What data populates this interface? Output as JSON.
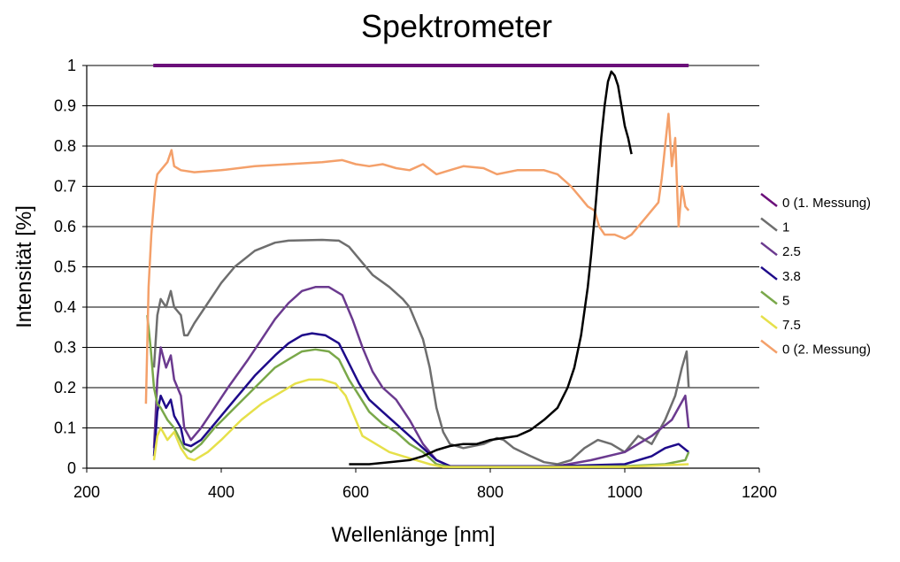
{
  "chart_data": {
    "type": "line",
    "title": "Spektrometer",
    "xlabel": "Wellenlänge [nm]",
    "ylabel": "Intensität [%]",
    "xlim": [
      200,
      1200
    ],
    "ylim": [
      0,
      1
    ],
    "x_ticks": [
      "200",
      "400",
      "600",
      "800",
      "1000",
      "1200"
    ],
    "y_ticks": [
      "0",
      "0.1",
      "0.2",
      "0.3",
      "0.4",
      "0.5",
      "0.6",
      "0.7",
      "0.8",
      "0.9",
      "1"
    ],
    "grid": "horizontal",
    "legend_position": "right",
    "series": [
      {
        "name": "0 (1. Messung)",
        "color": "#6b0f7a",
        "points": [
          [
            299,
            1
          ],
          [
            1095,
            1
          ]
        ]
      },
      {
        "name": "1",
        "color": "#6e6e6e",
        "points": [
          [
            300,
            0.25
          ],
          [
            305,
            0.38
          ],
          [
            310,
            0.42
          ],
          [
            318,
            0.4
          ],
          [
            325,
            0.44
          ],
          [
            330,
            0.4
          ],
          [
            340,
            0.38
          ],
          [
            345,
            0.33
          ],
          [
            350,
            0.33
          ],
          [
            360,
            0.36
          ],
          [
            380,
            0.41
          ],
          [
            400,
            0.46
          ],
          [
            420,
            0.5
          ],
          [
            450,
            0.54
          ],
          [
            480,
            0.56
          ],
          [
            500,
            0.565
          ],
          [
            550,
            0.567
          ],
          [
            575,
            0.565
          ],
          [
            590,
            0.55
          ],
          [
            600,
            0.53
          ],
          [
            625,
            0.48
          ],
          [
            650,
            0.45
          ],
          [
            670,
            0.42
          ],
          [
            680,
            0.4
          ],
          [
            690,
            0.36
          ],
          [
            700,
            0.32
          ],
          [
            710,
            0.25
          ],
          [
            720,
            0.15
          ],
          [
            730,
            0.09
          ],
          [
            740,
            0.06
          ],
          [
            760,
            0.05
          ],
          [
            790,
            0.06
          ],
          [
            810,
            0.075
          ],
          [
            820,
            0.07
          ],
          [
            835,
            0.05
          ],
          [
            860,
            0.03
          ],
          [
            880,
            0.015
          ],
          [
            900,
            0.01
          ],
          [
            920,
            0.02
          ],
          [
            940,
            0.05
          ],
          [
            960,
            0.07
          ],
          [
            980,
            0.06
          ],
          [
            1000,
            0.04
          ],
          [
            1020,
            0.08
          ],
          [
            1040,
            0.06
          ],
          [
            1060,
            0.12
          ],
          [
            1075,
            0.18
          ],
          [
            1085,
            0.25
          ],
          [
            1092,
            0.29
          ],
          [
            1095,
            0.2
          ]
        ]
      },
      {
        "name": "2.5",
        "color": "#6b3a8f",
        "points": [
          [
            300,
            0.05
          ],
          [
            305,
            0.22
          ],
          [
            310,
            0.3
          ],
          [
            318,
            0.25
          ],
          [
            325,
            0.28
          ],
          [
            330,
            0.22
          ],
          [
            340,
            0.18
          ],
          [
            345,
            0.1
          ],
          [
            355,
            0.07
          ],
          [
            370,
            0.1
          ],
          [
            390,
            0.15
          ],
          [
            410,
            0.2
          ],
          [
            440,
            0.27
          ],
          [
            460,
            0.32
          ],
          [
            480,
            0.37
          ],
          [
            500,
            0.41
          ],
          [
            520,
            0.44
          ],
          [
            540,
            0.45
          ],
          [
            560,
            0.45
          ],
          [
            580,
            0.43
          ],
          [
            595,
            0.37
          ],
          [
            610,
            0.3
          ],
          [
            625,
            0.24
          ],
          [
            640,
            0.2
          ],
          [
            660,
            0.17
          ],
          [
            680,
            0.12
          ],
          [
            700,
            0.06
          ],
          [
            720,
            0.02
          ],
          [
            740,
            0.005
          ],
          [
            800,
            0.005
          ],
          [
            900,
            0.005
          ],
          [
            950,
            0.02
          ],
          [
            1000,
            0.04
          ],
          [
            1040,
            0.08
          ],
          [
            1070,
            0.12
          ],
          [
            1090,
            0.18
          ],
          [
            1095,
            0.1
          ]
        ]
      },
      {
        "name": "3.8",
        "color": "#1e0a8a",
        "points": [
          [
            300,
            0.03
          ],
          [
            305,
            0.14
          ],
          [
            310,
            0.18
          ],
          [
            318,
            0.15
          ],
          [
            325,
            0.17
          ],
          [
            330,
            0.13
          ],
          [
            340,
            0.1
          ],
          [
            345,
            0.06
          ],
          [
            355,
            0.055
          ],
          [
            370,
            0.07
          ],
          [
            390,
            0.11
          ],
          [
            420,
            0.17
          ],
          [
            450,
            0.23
          ],
          [
            480,
            0.28
          ],
          [
            500,
            0.31
          ],
          [
            520,
            0.33
          ],
          [
            535,
            0.335
          ],
          [
            555,
            0.33
          ],
          [
            575,
            0.31
          ],
          [
            590,
            0.26
          ],
          [
            605,
            0.21
          ],
          [
            620,
            0.17
          ],
          [
            640,
            0.14
          ],
          [
            660,
            0.11
          ],
          [
            680,
            0.08
          ],
          [
            700,
            0.05
          ],
          [
            720,
            0.02
          ],
          [
            740,
            0.005
          ],
          [
            900,
            0.005
          ],
          [
            1000,
            0.01
          ],
          [
            1040,
            0.03
          ],
          [
            1060,
            0.05
          ],
          [
            1080,
            0.06
          ],
          [
            1095,
            0.04
          ]
        ]
      },
      {
        "name": "5",
        "color": "#7aa84a",
        "points": [
          [
            290,
            0.38
          ],
          [
            295,
            0.3
          ],
          [
            300,
            0.2
          ],
          [
            305,
            0.16
          ],
          [
            310,
            0.15
          ],
          [
            320,
            0.12
          ],
          [
            330,
            0.1
          ],
          [
            345,
            0.05
          ],
          [
            355,
            0.04
          ],
          [
            370,
            0.06
          ],
          [
            390,
            0.1
          ],
          [
            420,
            0.15
          ],
          [
            450,
            0.2
          ],
          [
            480,
            0.25
          ],
          [
            500,
            0.27
          ],
          [
            520,
            0.29
          ],
          [
            540,
            0.295
          ],
          [
            560,
            0.29
          ],
          [
            575,
            0.27
          ],
          [
            590,
            0.22
          ],
          [
            605,
            0.18
          ],
          [
            620,
            0.14
          ],
          [
            640,
            0.11
          ],
          [
            660,
            0.09
          ],
          [
            680,
            0.06
          ],
          [
            700,
            0.04
          ],
          [
            720,
            0.01
          ],
          [
            740,
            0.003
          ],
          [
            900,
            0.003
          ],
          [
            1000,
            0.005
          ],
          [
            1060,
            0.01
          ],
          [
            1090,
            0.02
          ],
          [
            1095,
            0.04
          ]
        ]
      },
      {
        "name": "7.5",
        "color": "#e6e04a",
        "points": [
          [
            300,
            0.02
          ],
          [
            305,
            0.08
          ],
          [
            310,
            0.1
          ],
          [
            320,
            0.07
          ],
          [
            330,
            0.09
          ],
          [
            340,
            0.05
          ],
          [
            350,
            0.025
          ],
          [
            360,
            0.02
          ],
          [
            380,
            0.04
          ],
          [
            400,
            0.07
          ],
          [
            430,
            0.12
          ],
          [
            460,
            0.16
          ],
          [
            490,
            0.19
          ],
          [
            510,
            0.21
          ],
          [
            530,
            0.22
          ],
          [
            550,
            0.22
          ],
          [
            570,
            0.21
          ],
          [
            585,
            0.18
          ],
          [
            600,
            0.12
          ],
          [
            610,
            0.08
          ],
          [
            630,
            0.06
          ],
          [
            650,
            0.04
          ],
          [
            670,
            0.03
          ],
          [
            690,
            0.02
          ],
          [
            710,
            0.01
          ],
          [
            730,
            0.003
          ],
          [
            1000,
            0.003
          ],
          [
            1095,
            0.01
          ]
        ]
      },
      {
        "name": "0 (2. Messung)",
        "color": "#f4a06a",
        "points": [
          [
            288,
            0.16
          ],
          [
            292,
            0.45
          ],
          [
            296,
            0.58
          ],
          [
            299,
            0.64
          ],
          [
            302,
            0.7
          ],
          [
            305,
            0.73
          ],
          [
            310,
            0.74
          ],
          [
            320,
            0.76
          ],
          [
            326,
            0.79
          ],
          [
            330,
            0.75
          ],
          [
            340,
            0.74
          ],
          [
            360,
            0.735
          ],
          [
            400,
            0.74
          ],
          [
            450,
            0.75
          ],
          [
            500,
            0.755
          ],
          [
            550,
            0.76
          ],
          [
            580,
            0.765
          ],
          [
            600,
            0.755
          ],
          [
            620,
            0.75
          ],
          [
            640,
            0.755
          ],
          [
            660,
            0.745
          ],
          [
            680,
            0.74
          ],
          [
            700,
            0.755
          ],
          [
            720,
            0.73
          ],
          [
            740,
            0.74
          ],
          [
            760,
            0.75
          ],
          [
            790,
            0.745
          ],
          [
            810,
            0.73
          ],
          [
            840,
            0.74
          ],
          [
            880,
            0.74
          ],
          [
            900,
            0.73
          ],
          [
            920,
            0.7
          ],
          [
            935,
            0.67
          ],
          [
            945,
            0.65
          ],
          [
            955,
            0.64
          ],
          [
            962,
            0.6
          ],
          [
            970,
            0.58
          ],
          [
            985,
            0.58
          ],
          [
            1000,
            0.57
          ],
          [
            1010,
            0.58
          ],
          [
            1020,
            0.6
          ],
          [
            1030,
            0.62
          ],
          [
            1040,
            0.64
          ],
          [
            1050,
            0.66
          ],
          [
            1055,
            0.72
          ],
          [
            1060,
            0.8
          ],
          [
            1065,
            0.88
          ],
          [
            1070,
            0.75
          ],
          [
            1075,
            0.82
          ],
          [
            1080,
            0.6
          ],
          [
            1085,
            0.7
          ],
          [
            1090,
            0.65
          ],
          [
            1095,
            0.64
          ]
        ]
      },
      {
        "name": "",
        "color": "#000000",
        "points": [
          [
            590,
            0.01
          ],
          [
            620,
            0.01
          ],
          [
            650,
            0.015
          ],
          [
            680,
            0.02
          ],
          [
            700,
            0.03
          ],
          [
            720,
            0.045
          ],
          [
            740,
            0.055
          ],
          [
            760,
            0.06
          ],
          [
            780,
            0.06
          ],
          [
            800,
            0.07
          ],
          [
            820,
            0.075
          ],
          [
            840,
            0.08
          ],
          [
            860,
            0.095
          ],
          [
            880,
            0.12
          ],
          [
            900,
            0.15
          ],
          [
            915,
            0.2
          ],
          [
            925,
            0.25
          ],
          [
            935,
            0.33
          ],
          [
            945,
            0.45
          ],
          [
            950,
            0.53
          ],
          [
            955,
            0.62
          ],
          [
            960,
            0.72
          ],
          [
            965,
            0.82
          ],
          [
            970,
            0.9
          ],
          [
            975,
            0.96
          ],
          [
            980,
            0.985
          ],
          [
            985,
            0.975
          ],
          [
            990,
            0.95
          ],
          [
            995,
            0.9
          ],
          [
            1000,
            0.85
          ],
          [
            1005,
            0.82
          ],
          [
            1010,
            0.78
          ]
        ]
      }
    ]
  }
}
